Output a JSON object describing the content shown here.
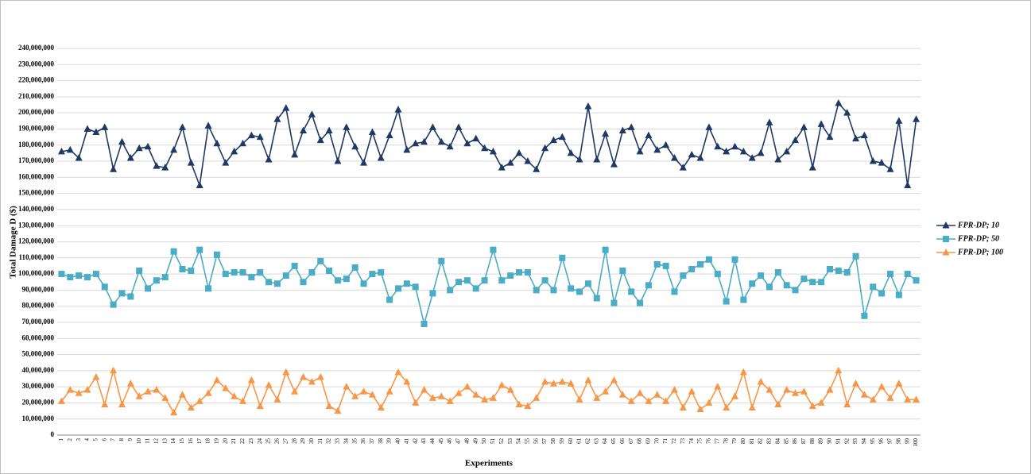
{
  "chart_data": {
    "type": "line",
    "xlabel": "Experiments",
    "ylabel": "Total Damage D ($)",
    "categories": [
      1,
      2,
      3,
      4,
      5,
      6,
      7,
      8,
      9,
      10,
      11,
      12,
      13,
      14,
      15,
      16,
      17,
      18,
      19,
      20,
      21,
      22,
      23,
      24,
      25,
      26,
      27,
      28,
      29,
      30,
      31,
      32,
      33,
      34,
      35,
      36,
      37,
      38,
      39,
      40,
      41,
      42,
      43,
      44,
      45,
      46,
      47,
      48,
      49,
      50,
      51,
      52,
      53,
      54,
      55,
      56,
      57,
      58,
      59,
      60,
      61,
      62,
      63,
      64,
      65,
      66,
      67,
      68,
      69,
      70,
      71,
      72,
      73,
      74,
      75,
      76,
      77,
      78,
      79,
      80,
      81,
      82,
      83,
      84,
      85,
      86,
      87,
      88,
      89,
      90,
      91,
      92,
      93,
      94,
      95,
      96,
      97,
      98,
      99,
      100
    ],
    "ylim": [
      0,
      240000000
    ],
    "yticks": [
      0,
      {
        "value": 10000000,
        "label": "10,000,000"
      },
      {
        "value": 20000000,
        "label": "20,000,000"
      },
      {
        "value": 30000000,
        "label": "30,000,000"
      },
      {
        "value": 40000000,
        "label": "40,000,000"
      },
      {
        "value": 50000000,
        "label": "50,000,000"
      },
      {
        "value": 60000000,
        "label": "60,000,000"
      },
      {
        "value": 70000000,
        "label": "70,000,000"
      },
      {
        "value": 80000000,
        "label": "80,000,000"
      },
      {
        "value": 90000000,
        "label": "90,000,000"
      },
      {
        "value": 100000000,
        "label": "100,000,000"
      },
      {
        "value": 110000000,
        "label": "110,000,000"
      },
      {
        "value": 120000000,
        "label": "120,000,000"
      },
      {
        "value": 130000000,
        "label": "130,000,000"
      },
      {
        "value": 140000000,
        "label": "140,000,000"
      },
      {
        "value": 150000000,
        "label": "150,000,000"
      },
      {
        "value": 160000000,
        "label": "160,000,000"
      },
      {
        "value": 170000000,
        "label": "170,000,000"
      },
      {
        "value": 180000000,
        "label": "180,000,000"
      },
      {
        "value": 190000000,
        "label": "190,000,000"
      },
      {
        "value": 200000000,
        "label": "200,000,000"
      },
      {
        "value": 210000000,
        "label": "210,000,000"
      },
      {
        "value": 220000000,
        "label": "220,000,000"
      },
      {
        "value": 230000000,
        "label": "230,000,000"
      },
      {
        "value": 240000000,
        "label": "240,000,000"
      }
    ],
    "grid": true,
    "legend": "right",
    "series": [
      {
        "name": "FPR-DP; 10",
        "color": "#1f3864",
        "marker": "triangle",
        "values": [
          176000000,
          177000000,
          172000000,
          190000000,
          188000000,
          191000000,
          165000000,
          182000000,
          172000000,
          178000000,
          179000000,
          167000000,
          166000000,
          177000000,
          191000000,
          169000000,
          155000000,
          192000000,
          181000000,
          169000000,
          176000000,
          181000000,
          186000000,
          185000000,
          171000000,
          196000000,
          203000000,
          174000000,
          189000000,
          199000000,
          183000000,
          189000000,
          170000000,
          191000000,
          179000000,
          169000000,
          188000000,
          172000000,
          186000000,
          202000000,
          177000000,
          181000000,
          182000000,
          191000000,
          182000000,
          179000000,
          191000000,
          181000000,
          184000000,
          178000000,
          176000000,
          166000000,
          169000000,
          175000000,
          170000000,
          165000000,
          178000000,
          183000000,
          185000000,
          175000000,
          171000000,
          204000000,
          171000000,
          187000000,
          168000000,
          189000000,
          191000000,
          176000000,
          186000000,
          177000000,
          180000000,
          172000000,
          166000000,
          174000000,
          172000000,
          191000000,
          179000000,
          176000000,
          179000000,
          176000000,
          172000000,
          175000000,
          194000000,
          171000000,
          176000000,
          183000000,
          191000000,
          166000000,
          193000000,
          185000000,
          206000000,
          200000000,
          184000000,
          186000000,
          170000000,
          169000000,
          165000000,
          195000000,
          155000000,
          196000000
        ]
      },
      {
        "name": "FPR-DP; 50",
        "color": "#4bacc6",
        "marker": "square",
        "values": [
          100000000,
          98000000,
          99000000,
          98000000,
          100000000,
          92000000,
          81000000,
          88000000,
          86000000,
          102000000,
          91000000,
          96000000,
          98000000,
          114000000,
          103000000,
          102000000,
          115000000,
          91000000,
          112000000,
          100000000,
          101000000,
          101000000,
          98000000,
          101000000,
          95000000,
          94000000,
          99000000,
          105000000,
          95000000,
          101000000,
          108000000,
          102000000,
          96000000,
          97000000,
          104000000,
          94000000,
          100000000,
          101000000,
          84000000,
          91000000,
          94000000,
          92000000,
          69000000,
          88000000,
          108000000,
          90000000,
          95000000,
          96000000,
          91000000,
          96000000,
          115000000,
          96000000,
          99000000,
          101000000,
          101000000,
          90000000,
          96000000,
          90000000,
          110000000,
          91000000,
          89000000,
          94000000,
          85000000,
          115000000,
          82000000,
          102000000,
          89000000,
          82000000,
          93000000,
          106000000,
          105000000,
          89000000,
          99000000,
          103000000,
          106000000,
          109000000,
          100000000,
          83000000,
          109000000,
          84000000,
          94000000,
          99000000,
          92000000,
          101000000,
          93000000,
          90000000,
          97000000,
          95000000,
          95000000,
          103000000,
          102000000,
          101000000,
          111000000,
          74000000,
          92000000,
          88000000,
          100000000,
          87000000,
          100000000,
          96000000
        ]
      },
      {
        "name": "FPR-DP; 100",
        "color": "#f79646",
        "marker": "triangle",
        "values": [
          21000000,
          28000000,
          26000000,
          28000000,
          36000000,
          19000000,
          40000000,
          19000000,
          32000000,
          24000000,
          27000000,
          28000000,
          23000000,
          14000000,
          25000000,
          17000000,
          21000000,
          26000000,
          34000000,
          29000000,
          24000000,
          21000000,
          34000000,
          18000000,
          31000000,
          22000000,
          39000000,
          27000000,
          36000000,
          33000000,
          36000000,
          18000000,
          15000000,
          30000000,
          24000000,
          27000000,
          25000000,
          17000000,
          27000000,
          39000000,
          33000000,
          20000000,
          28000000,
          23000000,
          24000000,
          21000000,
          26000000,
          30000000,
          25000000,
          22000000,
          23000000,
          31000000,
          28000000,
          19000000,
          18000000,
          23000000,
          33000000,
          32000000,
          33000000,
          32000000,
          22000000,
          34000000,
          23000000,
          27000000,
          34000000,
          25000000,
          21000000,
          26000000,
          21000000,
          25000000,
          21000000,
          28000000,
          17000000,
          27000000,
          16000000,
          20000000,
          30000000,
          17000000,
          24000000,
          39000000,
          17000000,
          33000000,
          28000000,
          19000000,
          28000000,
          26000000,
          27000000,
          18000000,
          20000000,
          28000000,
          40000000,
          19000000,
          32000000,
          25000000,
          22000000,
          30000000,
          23000000,
          32000000,
          22000000,
          22000000
        ]
      }
    ]
  }
}
